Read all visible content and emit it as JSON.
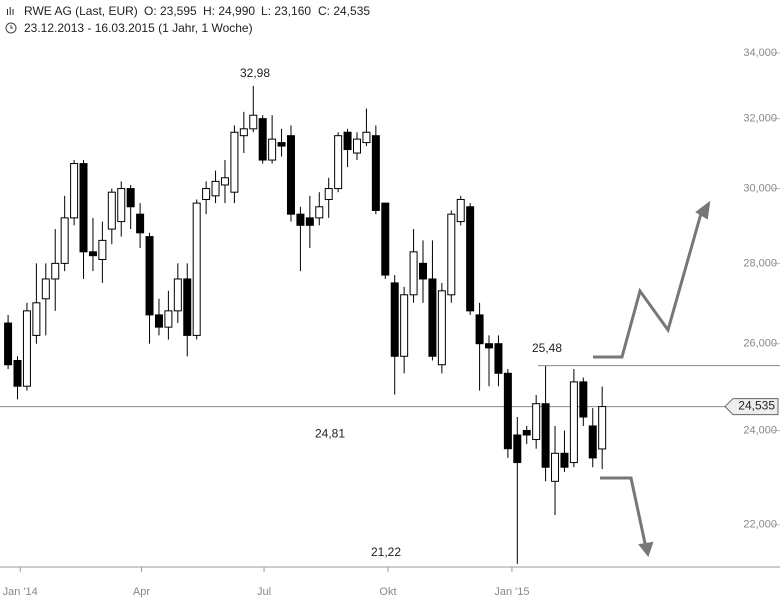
{
  "header": {
    "instrument": "RWE AG (Last, EUR)",
    "open": "O: 23,595",
    "high": "H: 24,990",
    "low": "L: 23,160",
    "close": "C: 24,535",
    "range": "23.12.2013 - 16.03.2015 (1 Jahr, 1 Woche)"
  },
  "chart_data": {
    "type": "candlestick",
    "log_scale": true,
    "x": [
      "2013-12-23",
      "2013-12-30",
      "2014-01-06",
      "2014-01-13",
      "2014-01-20",
      "2014-01-27",
      "2014-02-03",
      "2014-02-10",
      "2014-02-17",
      "2014-02-24",
      "2014-03-03",
      "2014-03-10",
      "2014-03-17",
      "2014-03-24",
      "2014-03-31",
      "2014-04-07",
      "2014-04-14",
      "2014-04-21",
      "2014-04-28",
      "2014-05-05",
      "2014-05-12",
      "2014-05-19",
      "2014-05-26",
      "2014-06-02",
      "2014-06-09",
      "2014-06-16",
      "2014-06-23",
      "2014-06-30",
      "2014-07-07",
      "2014-07-14",
      "2014-07-21",
      "2014-07-28",
      "2014-08-04",
      "2014-08-11",
      "2014-08-18",
      "2014-08-25",
      "2014-09-01",
      "2014-09-08",
      "2014-09-15",
      "2014-09-22",
      "2014-09-29",
      "2014-10-06",
      "2014-10-13",
      "2014-10-20",
      "2014-10-27",
      "2014-11-03",
      "2014-11-10",
      "2014-11-17",
      "2014-11-24",
      "2014-12-01",
      "2014-12-08",
      "2014-12-15",
      "2014-12-22",
      "2014-12-29",
      "2015-01-05",
      "2015-01-12",
      "2015-01-19",
      "2015-01-26",
      "2015-02-02",
      "2015-02-09",
      "2015-02-16",
      "2015-02-23",
      "2015-03-02",
      "2015-03-09"
    ],
    "open": [
      26.5,
      25.6,
      25.0,
      26.2,
      27.1,
      27.6,
      28.0,
      29.2,
      30.7,
      28.3,
      28.1,
      28.9,
      29.1,
      30.0,
      29.3,
      28.7,
      26.7,
      26.4,
      26.8,
      27.6,
      26.2,
      29.7,
      29.8,
      30.1,
      29.9,
      31.5,
      31.7,
      32.0,
      30.8,
      31.3,
      31.5,
      29.3,
      29.2,
      29.2,
      29.7,
      30.0,
      31.6,
      31.0,
      31.3,
      31.5,
      29.6,
      27.5,
      25.7,
      27.2,
      28.0,
      27.6,
      25.5,
      27.2,
      29.1,
      29.5,
      26.7,
      26.0,
      26.0,
      25.3,
      23.9,
      24.0,
      23.8,
      24.6,
      22.9,
      23.5,
      23.3,
      25.1,
      24.1,
      23.595
    ],
    "high": [
      26.7,
      25.7,
      27.0,
      28.0,
      28.0,
      28.9,
      29.8,
      30.8,
      30.8,
      29.2,
      29.1,
      30.0,
      30.2,
      30.1,
      29.6,
      28.8,
      27.1,
      27.3,
      28.0,
      28.0,
      29.7,
      30.2,
      30.5,
      30.8,
      31.8,
      32.2,
      32.98,
      32.1,
      32.1,
      31.7,
      31.8,
      29.5,
      29.8,
      29.9,
      30.3,
      31.6,
      31.7,
      31.6,
      32.3,
      31.8,
      29.6,
      27.7,
      27.4,
      28.9,
      28.6,
      28.6,
      27.5,
      29.4,
      29.8,
      29.6,
      27.0,
      26.2,
      26.2,
      25.4,
      24.3,
      24.1,
      24.8,
      25.48,
      24.1,
      24.0,
      25.4,
      25.2,
      24.5,
      24.99
    ],
    "low": [
      25.4,
      24.7,
      24.9,
      26.0,
      26.2,
      26.8,
      27.8,
      29.0,
      27.6,
      27.8,
      27.5,
      28.5,
      28.7,
      28.9,
      28.4,
      26.0,
      26.2,
      26.1,
      26.5,
      25.7,
      26.1,
      29.3,
      29.6,
      29.6,
      29.6,
      31.0,
      31.6,
      30.7,
      30.7,
      30.9,
      29.1,
      27.8,
      28.4,
      29.0,
      29.2,
      29.9,
      30.6,
      30.8,
      31.2,
      29.3,
      27.6,
      24.81,
      25.3,
      27.0,
      27.0,
      25.6,
      25.3,
      27.0,
      29.0,
      26.7,
      24.9,
      25.0,
      25.0,
      23.4,
      21.22,
      23.7,
      23.6,
      22.9,
      22.2,
      23.1,
      23.2,
      24.1,
      23.2,
      23.16
    ],
    "close": [
      25.5,
      25.0,
      26.8,
      27.0,
      27.6,
      28.0,
      29.2,
      30.7,
      28.3,
      28.2,
      28.6,
      29.9,
      30.0,
      29.5,
      28.8,
      26.7,
      26.4,
      26.8,
      27.6,
      26.2,
      29.6,
      30.0,
      30.2,
      30.3,
      31.6,
      31.7,
      32.1,
      30.8,
      31.4,
      31.2,
      29.3,
      29.0,
      29.0,
      29.5,
      30.0,
      31.5,
      31.1,
      31.4,
      31.6,
      29.4,
      27.7,
      25.7,
      27.2,
      28.3,
      27.6,
      25.7,
      27.3,
      29.3,
      29.7,
      26.8,
      26.0,
      25.9,
      25.3,
      23.6,
      23.3,
      23.9,
      24.6,
      23.2,
      23.5,
      23.2,
      25.1,
      24.3,
      23.4,
      24.535
    ],
    "up_color": "#ffffff",
    "down_color": "#000000",
    "ylim": [
      21.16,
      35.7
    ],
    "yticks": [
      {
        "value": 22,
        "label": "22,000"
      },
      {
        "value": 24,
        "label": "24,000"
      },
      {
        "value": 26,
        "label": "26,000"
      },
      {
        "value": 28,
        "label": "28,000"
      },
      {
        "value": 30,
        "label": "30,000"
      },
      {
        "value": 32,
        "label": "32,000"
      },
      {
        "value": 34,
        "label": "34,000"
      }
    ],
    "xlim": [
      "2013-12-17",
      "2015-07-19"
    ],
    "xticks": [
      {
        "value": "2014-01-01",
        "label": "Jan '14"
      },
      {
        "value": "2014-04-01",
        "label": "Apr"
      },
      {
        "value": "2014-07-01",
        "label": "Jul"
      },
      {
        "value": "2014-10-01",
        "label": "Okt"
      },
      {
        "value": "2015-01-01",
        "label": "Jan '15"
      }
    ],
    "last_price": {
      "value": 24.535,
      "label": "24,535"
    },
    "annotations": [
      {
        "value": 32.98,
        "label": "32,98"
      },
      {
        "value": 24.81,
        "label": "24,81"
      },
      {
        "value": 21.22,
        "label": "21,22"
      },
      {
        "value": 25.48,
        "label": "25,48"
      }
    ]
  }
}
